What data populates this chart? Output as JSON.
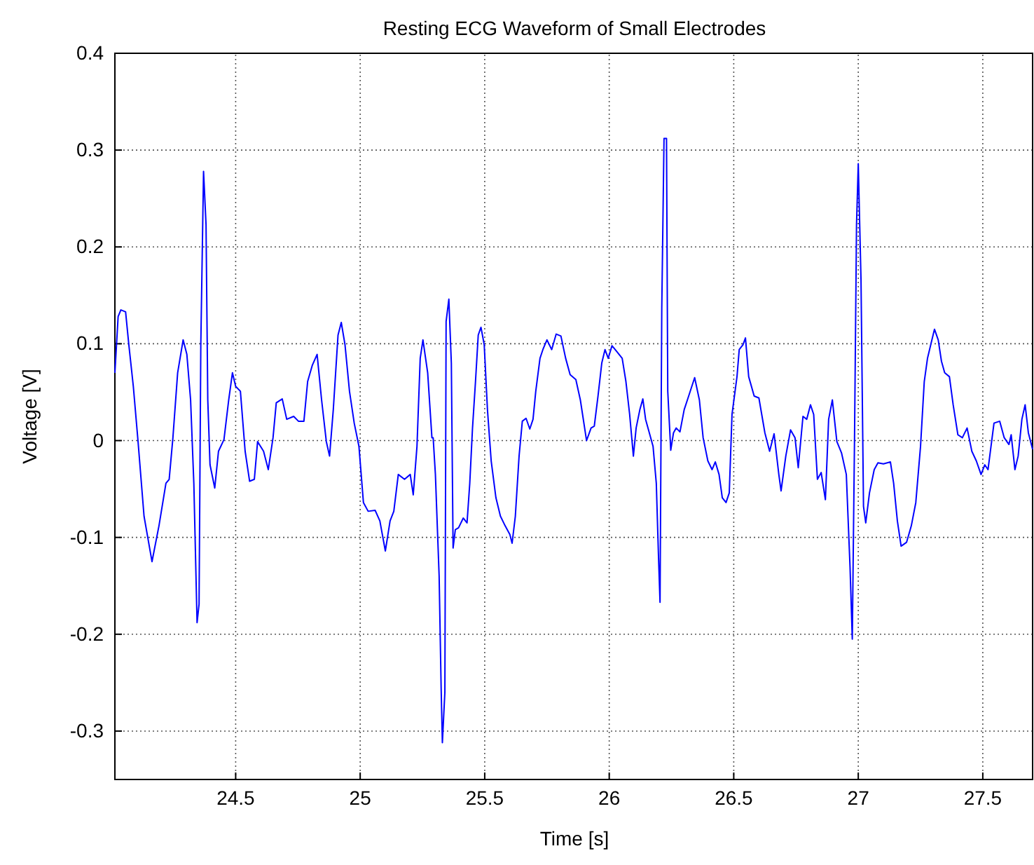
{
  "chart_data": {
    "type": "line",
    "title": "Resting ECG Waveform of Small Electrodes",
    "xlabel": "Time [s]",
    "ylabel": "Voltage [V]",
    "xlim": [
      24.015,
      27.7
    ],
    "ylim": [
      -0.35,
      0.4
    ],
    "xticks": [
      24.5,
      25,
      25.5,
      26,
      26.5,
      27,
      27.5
    ],
    "yticks": [
      -0.3,
      -0.2,
      -0.1,
      0,
      0.1,
      0.2,
      0.3,
      0.4
    ],
    "grid": true,
    "line_style": "solid",
    "marker": "none",
    "series": [
      {
        "color": "#0000ff",
        "x": [
          24.015,
          24.028,
          24.039,
          24.058,
          24.071,
          24.089,
          24.108,
          24.132,
          24.164,
          24.192,
          24.22,
          24.233,
          24.248,
          24.267,
          24.289,
          24.304,
          24.319,
          24.332,
          24.345,
          24.353,
          24.36,
          24.371,
          24.381,
          24.388,
          24.397,
          24.416,
          24.431,
          24.453,
          24.472,
          24.487,
          24.5,
          24.519,
          24.538,
          24.556,
          24.575,
          24.588,
          24.612,
          24.631,
          24.65,
          24.663,
          24.687,
          24.705,
          24.733,
          24.752,
          24.774,
          24.789,
          24.808,
          24.827,
          24.845,
          24.864,
          24.877,
          24.892,
          24.911,
          24.924,
          24.939,
          24.957,
          24.976,
          24.995,
          25.013,
          25.032,
          25.06,
          25.079,
          25.101,
          25.12,
          25.135,
          25.153,
          25.178,
          25.201,
          25.213,
          25.228,
          25.241,
          25.252,
          25.271,
          25.288,
          25.293,
          25.302,
          25.317,
          25.325,
          25.33,
          25.34,
          25.345,
          25.356,
          25.366,
          25.373,
          25.382,
          25.395,
          25.414,
          25.429,
          25.44,
          25.451,
          25.463,
          25.474,
          25.485,
          25.498,
          25.511,
          25.526,
          25.545,
          25.563,
          25.582,
          25.601,
          25.61,
          25.623,
          25.638,
          25.651,
          25.666,
          25.681,
          25.694,
          25.705,
          25.722,
          25.735,
          25.75,
          25.769,
          25.787,
          25.806,
          25.825,
          25.843,
          25.866,
          25.884,
          25.909,
          25.927,
          25.94,
          25.955,
          25.97,
          25.983,
          25.996,
          26.011,
          26.03,
          26.052,
          26.067,
          26.082,
          26.097,
          26.108,
          26.123,
          26.135,
          26.146,
          26.161,
          26.176,
          26.189,
          26.198,
          26.204,
          26.211,
          26.22,
          26.23,
          26.235,
          26.247,
          26.258,
          26.269,
          26.284,
          26.301,
          26.319,
          26.343,
          26.362,
          26.377,
          26.396,
          26.413,
          26.426,
          26.441,
          26.454,
          26.469,
          26.482,
          26.493,
          26.513,
          26.522,
          26.537,
          26.547,
          26.56,
          26.582,
          26.601,
          26.625,
          26.644,
          26.662,
          26.681,
          26.69,
          26.709,
          26.728,
          26.746,
          26.759,
          26.778,
          26.793,
          26.808,
          26.821,
          26.836,
          26.851,
          26.868,
          26.881,
          26.896,
          26.914,
          26.933,
          26.952,
          26.967,
          26.976,
          26.985,
          26.993,
          27.0,
          27.011,
          27.021,
          27.03,
          27.045,
          27.064,
          27.079,
          27.101,
          27.129,
          27.142,
          27.157,
          27.172,
          27.194,
          27.213,
          27.231,
          27.25,
          27.265,
          27.278,
          27.291,
          27.306,
          27.321,
          27.334,
          27.347,
          27.366,
          27.381,
          27.4,
          27.418,
          27.437,
          27.456,
          27.474,
          27.493,
          27.508,
          27.521,
          27.545,
          27.568,
          27.586,
          27.605,
          27.614,
          27.629,
          27.642,
          27.657,
          27.67,
          27.683,
          27.7
        ],
        "values": [
          0.07,
          0.128,
          0.135,
          0.133,
          0.099,
          0.056,
          -0.001,
          -0.078,
          -0.125,
          -0.088,
          -0.044,
          -0.04,
          0.003,
          0.07,
          0.104,
          0.089,
          0.042,
          -0.044,
          -0.188,
          -0.169,
          0.099,
          0.278,
          0.223,
          0.042,
          -0.025,
          -0.049,
          -0.011,
          0.001,
          0.042,
          0.07,
          0.056,
          0.051,
          -0.011,
          -0.042,
          -0.04,
          -0.001,
          -0.011,
          -0.03,
          0.003,
          0.039,
          0.043,
          0.022,
          0.025,
          0.02,
          0.02,
          0.061,
          0.078,
          0.089,
          0.042,
          -0.001,
          -0.016,
          0.032,
          0.109,
          0.122,
          0.099,
          0.051,
          0.018,
          -0.006,
          -0.064,
          -0.073,
          -0.072,
          -0.083,
          -0.114,
          -0.083,
          -0.073,
          -0.035,
          -0.04,
          -0.035,
          -0.056,
          -0.006,
          0.085,
          0.104,
          0.07,
          0.003,
          0.003,
          -0.035,
          -0.14,
          -0.255,
          -0.312,
          -0.26,
          0.123,
          0.146,
          0.08,
          -0.111,
          -0.092,
          -0.09,
          -0.08,
          -0.085,
          -0.044,
          0.013,
          0.061,
          0.109,
          0.117,
          0.099,
          0.032,
          -0.021,
          -0.059,
          -0.078,
          -0.088,
          -0.097,
          -0.106,
          -0.078,
          -0.016,
          0.02,
          0.023,
          0.012,
          0.022,
          0.051,
          0.085,
          0.095,
          0.104,
          0.094,
          0.11,
          0.108,
          0.085,
          0.068,
          0.063,
          0.042,
          0.0,
          0.013,
          0.015,
          0.046,
          0.08,
          0.094,
          0.085,
          0.098,
          0.092,
          0.085,
          0.061,
          0.027,
          -0.016,
          0.013,
          0.032,
          0.043,
          0.022,
          0.008,
          -0.006,
          -0.044,
          -0.121,
          -0.167,
          0.137,
          0.312,
          0.312,
          0.051,
          -0.01,
          0.008,
          0.013,
          0.009,
          0.032,
          0.046,
          0.065,
          0.042,
          0.003,
          -0.021,
          -0.03,
          -0.022,
          -0.035,
          -0.059,
          -0.064,
          -0.054,
          0.027,
          0.066,
          0.094,
          0.099,
          0.106,
          0.066,
          0.046,
          0.044,
          0.008,
          -0.011,
          0.007,
          -0.035,
          -0.052,
          -0.016,
          0.011,
          0.003,
          -0.028,
          0.025,
          0.022,
          0.037,
          0.027,
          -0.04,
          -0.033,
          -0.061,
          0.022,
          0.042,
          -0.001,
          -0.013,
          -0.035,
          -0.131,
          -0.205,
          0.003,
          0.223,
          0.286,
          0.166,
          -0.068,
          -0.085,
          -0.054,
          -0.03,
          -0.023,
          -0.024,
          -0.022,
          -0.044,
          -0.083,
          -0.109,
          -0.105,
          -0.088,
          -0.064,
          -0.006,
          0.061,
          0.085,
          0.099,
          0.115,
          0.104,
          0.082,
          0.07,
          0.066,
          0.037,
          0.006,
          0.003,
          0.013,
          -0.011,
          -0.021,
          -0.035,
          -0.025,
          -0.03,
          0.018,
          0.02,
          0.003,
          -0.004,
          0.006,
          -0.03,
          -0.016,
          0.022,
          0.037,
          0.008,
          -0.009
        ]
      }
    ]
  }
}
